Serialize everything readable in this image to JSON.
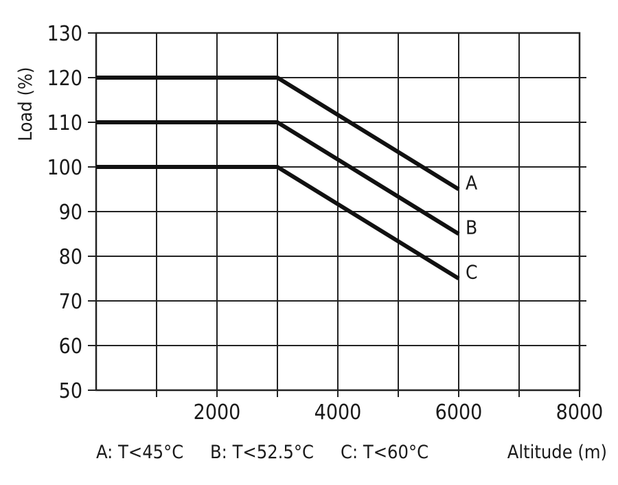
{
  "chart_data": {
    "type": "line",
    "xlabel": "Altitude (m)",
    "ylabel": "Load (%)",
    "xlim": [
      0,
      8000
    ],
    "ylim": [
      50,
      130
    ],
    "x_ticks": [
      2000,
      4000,
      6000,
      8000
    ],
    "x_tick_labels": [
      "2000",
      "4000",
      "6000",
      "8000"
    ],
    "y_ticks": [
      50,
      60,
      70,
      80,
      90,
      100,
      110,
      120,
      130
    ],
    "y_tick_labels": [
      "50",
      "60",
      "70",
      "80",
      "90",
      "100",
      "110",
      "120",
      "130"
    ],
    "x_grid_step": 1000,
    "grid": true,
    "series": [
      {
        "name": "A",
        "x": [
          0,
          3000,
          6000
        ],
        "y": [
          120,
          120,
          95
        ]
      },
      {
        "name": "B",
        "x": [
          0,
          3000,
          6000
        ],
        "y": [
          110,
          110,
          85
        ]
      },
      {
        "name": "C",
        "x": [
          0,
          3000,
          6000
        ],
        "y": [
          100,
          100,
          75
        ]
      }
    ],
    "legend": {
      "placement": "bottom",
      "items": [
        "A: T<45°C",
        "B: T<52.5°C",
        "C: T<60°C"
      ]
    }
  }
}
